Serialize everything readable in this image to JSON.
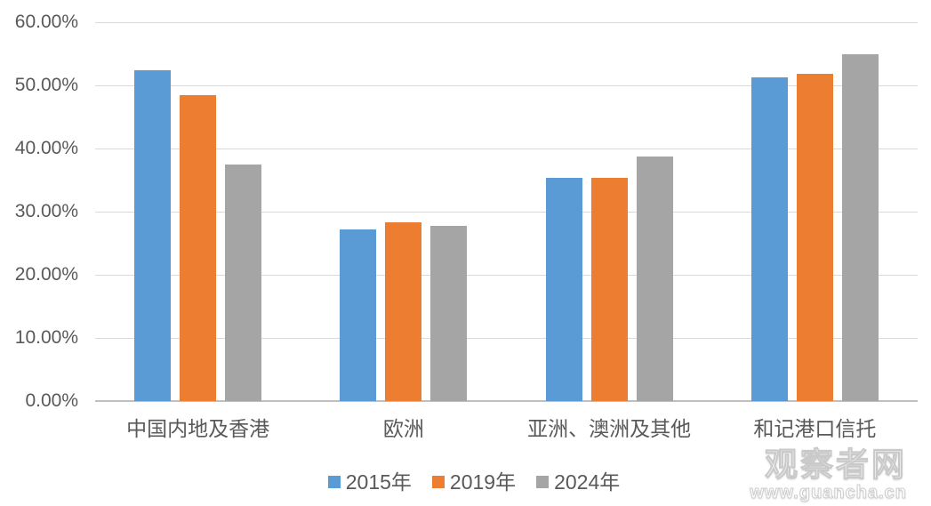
{
  "chart_data": {
    "type": "bar",
    "title": "",
    "xlabel": "",
    "ylabel": "",
    "categories": [
      "中国内地及香港",
      "欧洲",
      "亚洲、澳洲及其他",
      "和记港口信托"
    ],
    "series": [
      {
        "name": "2015年",
        "color": "#5B9BD5",
        "values": [
          52.4,
          27.2,
          35.4,
          51.2
        ]
      },
      {
        "name": "2019年",
        "color": "#ED7D31",
        "values": [
          48.4,
          28.3,
          35.3,
          51.9
        ]
      },
      {
        "name": "2024年",
        "color": "#A5A5A5",
        "values": [
          37.4,
          27.7,
          38.8,
          55.0
        ]
      }
    ],
    "ylim": [
      0,
      60
    ],
    "y_ticks": [
      {
        "value": 0,
        "label": "0.00%"
      },
      {
        "value": 10,
        "label": "10.00%"
      },
      {
        "value": 20,
        "label": "20.00%"
      },
      {
        "value": 30,
        "label": "30.00%"
      },
      {
        "value": 40,
        "label": "40.00%"
      },
      {
        "value": 50,
        "label": "50.00%"
      },
      {
        "value": 60,
        "label": "60.00%"
      }
    ],
    "grid": true,
    "legend_position": "bottom"
  },
  "watermark": {
    "brand": "观察者网",
    "url": "www.guancha.cn"
  },
  "colors": {
    "gridline": "#D9D9D9",
    "axis_line": "#BFBFBF",
    "label_text": "#595959",
    "background": "#FFFFFF"
  }
}
